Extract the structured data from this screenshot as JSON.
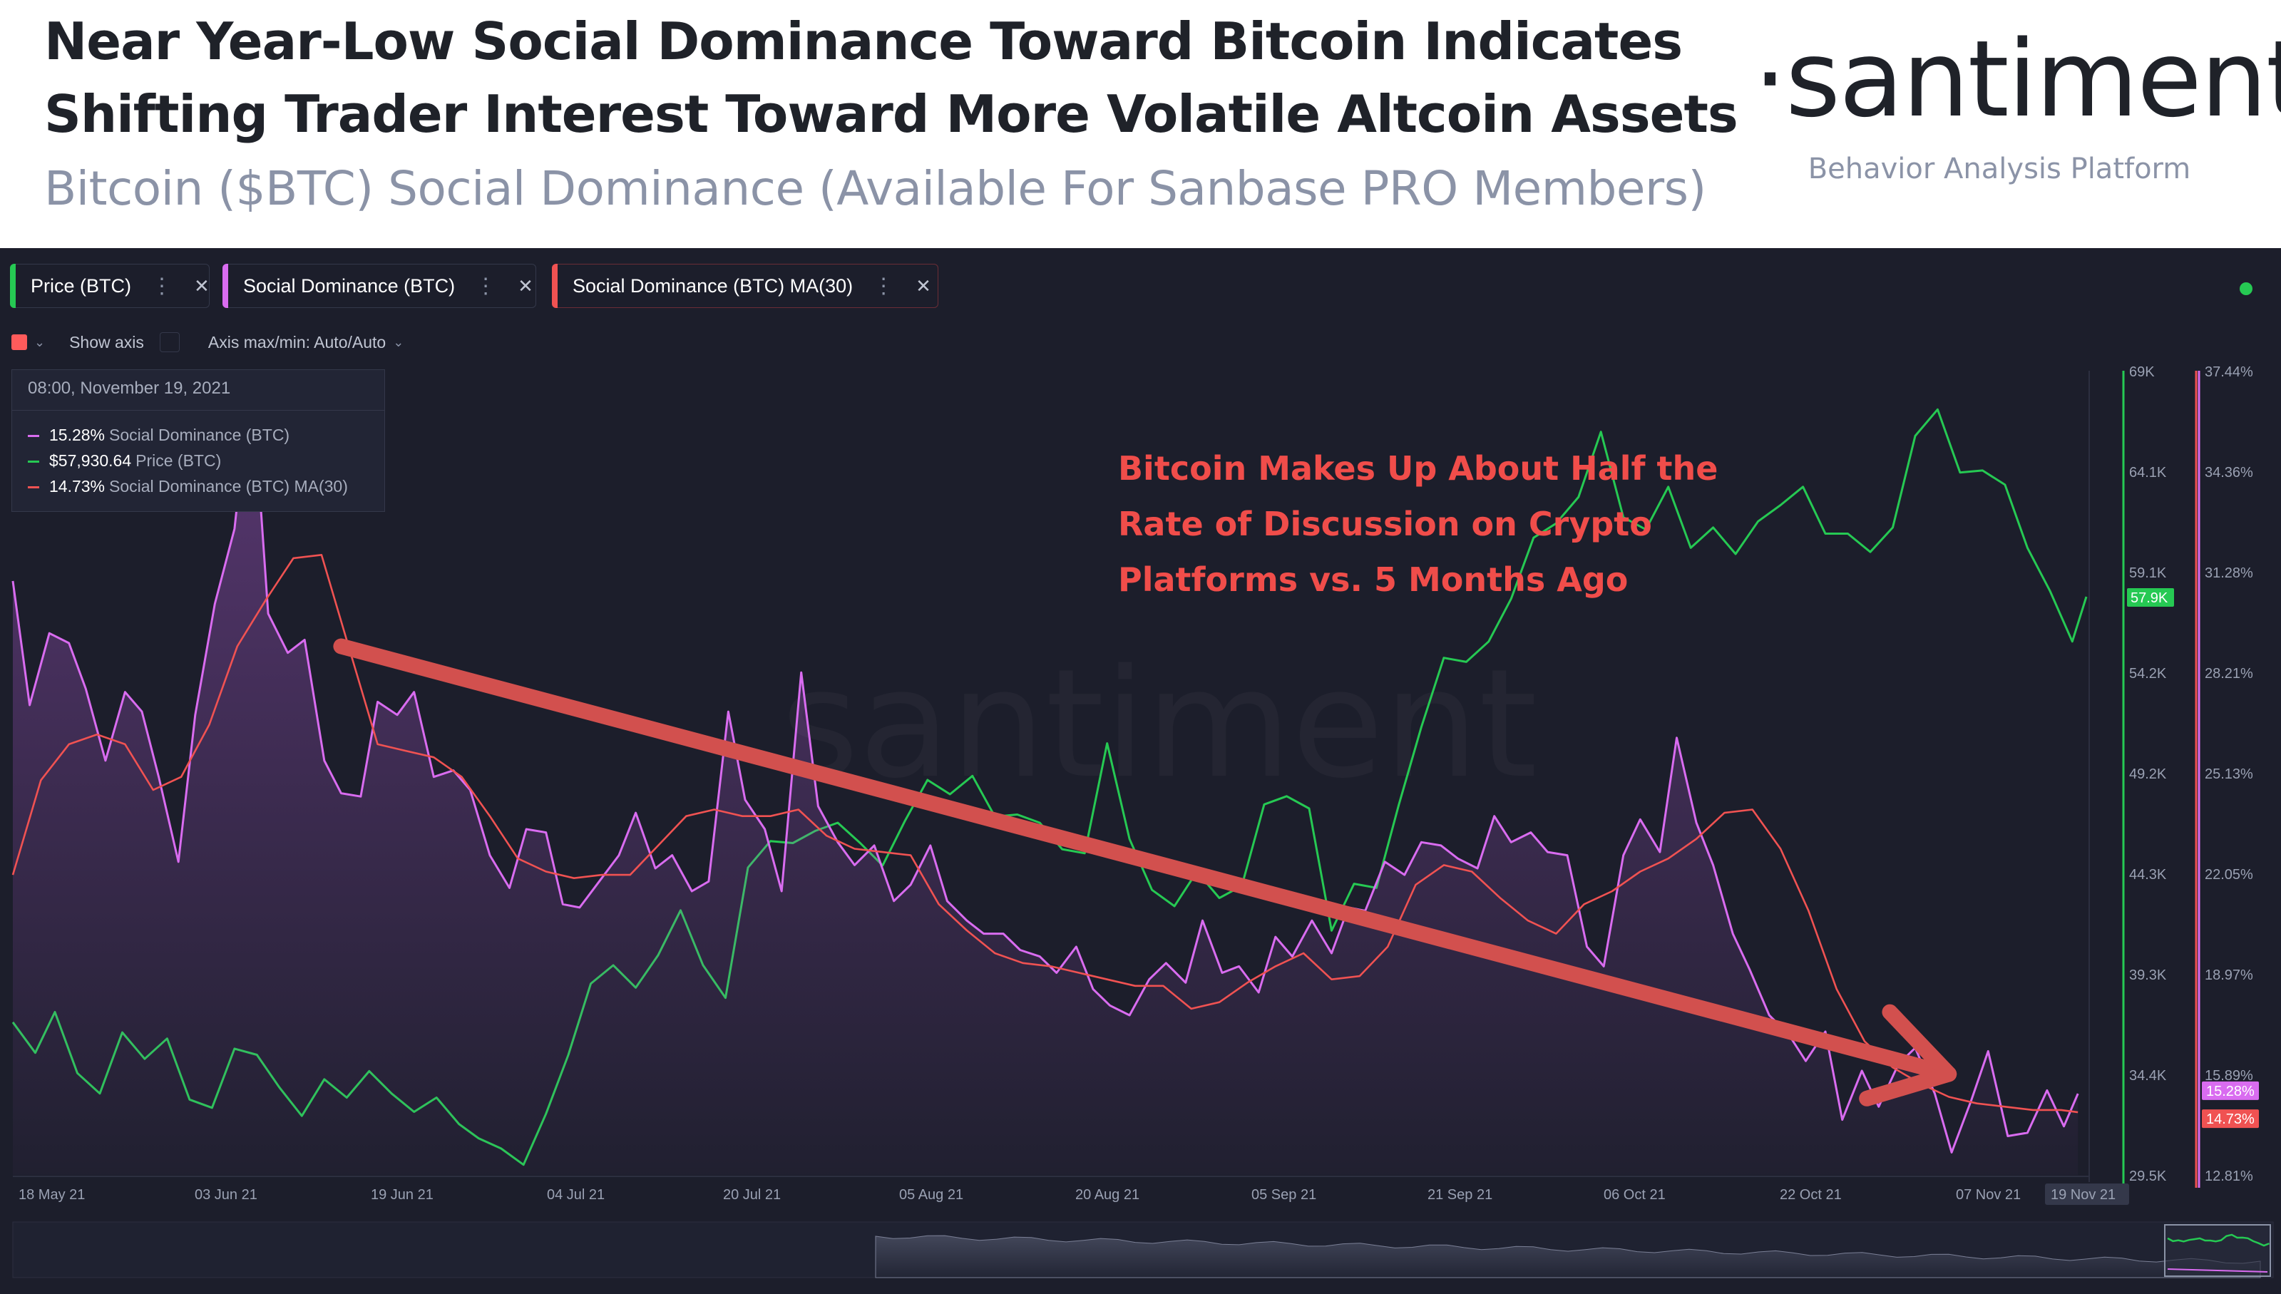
{
  "header": {
    "title_line1": "Near Year-Low Social Dominance Toward Bitcoin Indicates",
    "title_line2": "Shifting Trader Interest Toward More Volatile Altcoin Assets",
    "subtitle": "Bitcoin ($BTC) Social Dominance (Available For Sanbase PRO Members)",
    "brand": "·santiment·",
    "tagline": "Behavior Analysis Platform"
  },
  "toolbar": {
    "metrics": [
      {
        "label": "Price (BTC)",
        "color": "#26c953"
      },
      {
        "label": "Social Dominance (BTC)",
        "color": "#d96cf0"
      },
      {
        "label": "Social Dominance (BTC) MA(30)",
        "color": "#f05252"
      }
    ],
    "more_icon": "more-vertical-icon",
    "close_icon": "close-icon",
    "show_axis_label": "Show axis",
    "axis_label": "Axis max/min: Auto/Auto"
  },
  "tooltip": {
    "date": "08:00, November 19, 2021",
    "rows": [
      {
        "value": "15.28%",
        "name": "Social Dominance (BTC)",
        "color": "#d96cf0"
      },
      {
        "value": "$57,930.64",
        "name": "Price (BTC)",
        "color": "#26c953"
      },
      {
        "value": "14.73%",
        "name": "Social Dominance (BTC) MA(30)",
        "color": "#f05252"
      }
    ]
  },
  "annotation": {
    "lines": [
      "Bitcoin Makes Up About Half the",
      "Rate of Discussion on Crypto",
      "Platforms vs. 5 Months Ago"
    ],
    "color": "#f04d4a"
  },
  "watermark": "santiment",
  "chart_data": {
    "type": "line",
    "x_tick_labels": [
      "18 May 21",
      "03 Jun 21",
      "19 Jun 21",
      "04 Jul 21",
      "20 Jul 21",
      "05 Aug 21",
      "20 Aug 21",
      "05 Sep 21",
      "21 Sep 21",
      "06 Oct 21",
      "22 Oct 21",
      "07 Nov 21",
      "19 Nov 21"
    ],
    "price_axis": {
      "ticks": [
        "69K",
        "64.1K",
        "59.1K",
        "54.2K",
        "49.2K",
        "44.3K",
        "39.3K",
        "34.4K",
        "29.5K"
      ],
      "range": [
        29500,
        69000
      ],
      "current_label": "57.9K"
    },
    "dominance_axis": {
      "ticks": [
        "37.44%",
        "34.36%",
        "31.28%",
        "28.21%",
        "25.13%",
        "22.05%",
        "18.97%",
        "15.89%",
        "12.81%"
      ],
      "range": [
        12.81,
        37.44
      ],
      "current_labels": [
        "15.28%",
        "14.73%"
      ]
    },
    "series": [
      {
        "name": "Price (BTC)",
        "axis": "price",
        "color": "#26c953",
        "points": [
          [
            0,
            37000
          ],
          [
            8,
            35500
          ],
          [
            15,
            37500
          ],
          [
            23,
            34500
          ],
          [
            31,
            33500
          ],
          [
            39,
            36500
          ],
          [
            47,
            35200
          ],
          [
            55,
            36200
          ],
          [
            63,
            33200
          ],
          [
            71,
            32800
          ],
          [
            79,
            35700
          ],
          [
            87,
            35400
          ],
          [
            95,
            33800
          ],
          [
            103,
            32400
          ],
          [
            111,
            34200
          ],
          [
            119,
            33300
          ],
          [
            127,
            34600
          ],
          [
            135,
            33500
          ],
          [
            143,
            32600
          ],
          [
            151,
            33300
          ],
          [
            159,
            32000
          ],
          [
            166,
            31300
          ],
          [
            174,
            30800
          ],
          [
            182,
            30000
          ],
          [
            190,
            32500
          ],
          [
            198,
            35400
          ],
          [
            206,
            38900
          ],
          [
            214,
            39800
          ],
          [
            222,
            38700
          ],
          [
            230,
            40300
          ],
          [
            238,
            42500
          ],
          [
            246,
            39800
          ],
          [
            254,
            38200
          ],
          [
            262,
            44600
          ],
          [
            270,
            45900
          ],
          [
            278,
            45800
          ],
          [
            286,
            46400
          ],
          [
            294,
            46800
          ],
          [
            302,
            45800
          ],
          [
            310,
            44700
          ],
          [
            318,
            46900
          ],
          [
            326,
            48900
          ],
          [
            334,
            48200
          ],
          [
            342,
            49100
          ],
          [
            350,
            47100
          ],
          [
            358,
            47200
          ],
          [
            366,
            46800
          ],
          [
            374,
            45500
          ],
          [
            382,
            45300
          ],
          [
            390,
            50700
          ],
          [
            398,
            46000
          ],
          [
            406,
            43500
          ],
          [
            414,
            42700
          ],
          [
            422,
            44400
          ],
          [
            430,
            43100
          ],
          [
            438,
            43700
          ],
          [
            446,
            47700
          ],
          [
            454,
            48100
          ],
          [
            462,
            47500
          ],
          [
            470,
            41500
          ],
          [
            478,
            43800
          ],
          [
            486,
            43600
          ],
          [
            494,
            47700
          ],
          [
            502,
            51500
          ],
          [
            510,
            54900
          ],
          [
            518,
            54700
          ],
          [
            526,
            55700
          ],
          [
            534,
            57800
          ],
          [
            542,
            60800
          ],
          [
            550,
            61500
          ],
          [
            558,
            62800
          ],
          [
            566,
            66000
          ],
          [
            574,
            61800
          ],
          [
            582,
            61200
          ],
          [
            590,
            63300
          ],
          [
            598,
            60300
          ],
          [
            606,
            61300
          ],
          [
            614,
            60000
          ],
          [
            622,
            61600
          ],
          [
            630,
            62400
          ],
          [
            638,
            63300
          ],
          [
            646,
            61000
          ],
          [
            654,
            61000
          ],
          [
            662,
            60100
          ],
          [
            670,
            61300
          ],
          [
            678,
            65800
          ],
          [
            686,
            67100
          ],
          [
            694,
            64000
          ],
          [
            702,
            64100
          ],
          [
            710,
            63400
          ],
          [
            718,
            60300
          ],
          [
            726,
            58200
          ],
          [
            734,
            55700
          ],
          [
            739,
            57900
          ]
        ]
      },
      {
        "name": "Social Dominance (BTC)",
        "axis": "dominance",
        "color": "#d96cf0",
        "points": [
          [
            0,
            31.0
          ],
          [
            6,
            27.2
          ],
          [
            13,
            29.4
          ],
          [
            20,
            29.1
          ],
          [
            26,
            27.7
          ],
          [
            33,
            25.5
          ],
          [
            40,
            27.6
          ],
          [
            46,
            27.0
          ],
          [
            52,
            25.0
          ],
          [
            59,
            22.4
          ],
          [
            65,
            26.9
          ],
          [
            72,
            30.3
          ],
          [
            79,
            32.6
          ],
          [
            85,
            37.4
          ],
          [
            91,
            30.0
          ],
          [
            98,
            28.8
          ],
          [
            104,
            29.2
          ],
          [
            111,
            25.5
          ],
          [
            117,
            24.5
          ],
          [
            124,
            24.4
          ],
          [
            130,
            27.3
          ],
          [
            137,
            26.9
          ],
          [
            143,
            27.6
          ],
          [
            150,
            25.0
          ],
          [
            157,
            25.2
          ],
          [
            163,
            24.6
          ],
          [
            170,
            22.6
          ],
          [
            177,
            21.6
          ],
          [
            183,
            23.4
          ],
          [
            190,
            23.3
          ],
          [
            196,
            21.1
          ],
          [
            202,
            21.0
          ],
          [
            209,
            21.8
          ],
          [
            216,
            22.6
          ],
          [
            222,
            23.9
          ],
          [
            229,
            22.2
          ],
          [
            235,
            22.6
          ],
          [
            242,
            21.5
          ],
          [
            248,
            21.8
          ],
          [
            255,
            27.0
          ],
          [
            261,
            24.3
          ],
          [
            268,
            23.4
          ],
          [
            274,
            21.5
          ],
          [
            281,
            28.2
          ],
          [
            287,
            24.1
          ],
          [
            294,
            23.0
          ],
          [
            300,
            22.3
          ],
          [
            307,
            22.9
          ],
          [
            314,
            21.2
          ],
          [
            320,
            21.7
          ],
          [
            327,
            22.9
          ],
          [
            333,
            21.2
          ],
          [
            340,
            20.6
          ],
          [
            346,
            20.2
          ],
          [
            353,
            20.2
          ],
          [
            359,
            19.7
          ],
          [
            366,
            19.5
          ],
          [
            372,
            19.0
          ],
          [
            379,
            19.8
          ],
          [
            385,
            18.5
          ],
          [
            391,
            18.0
          ],
          [
            398,
            17.7
          ],
          [
            405,
            18.8
          ],
          [
            411,
            19.3
          ],
          [
            418,
            18.7
          ],
          [
            424,
            20.6
          ],
          [
            431,
            19.0
          ],
          [
            437,
            19.2
          ],
          [
            444,
            18.4
          ],
          [
            450,
            20.1
          ],
          [
            456,
            19.5
          ],
          [
            463,
            20.6
          ],
          [
            470,
            19.6
          ],
          [
            476,
            21.0
          ],
          [
            482,
            20.9
          ],
          [
            489,
            22.4
          ],
          [
            496,
            22.0
          ],
          [
            502,
            23.0
          ],
          [
            509,
            22.9
          ],
          [
            515,
            22.5
          ],
          [
            522,
            22.2
          ],
          [
            528,
            23.8
          ],
          [
            534,
            23.0
          ],
          [
            541,
            23.3
          ],
          [
            547,
            22.7
          ],
          [
            554,
            22.6
          ],
          [
            561,
            19.8
          ],
          [
            567,
            19.2
          ],
          [
            574,
            22.6
          ],
          [
            580,
            23.7
          ],
          [
            587,
            22.7
          ],
          [
            593,
            26.2
          ],
          [
            600,
            23.6
          ],
          [
            606,
            22.3
          ],
          [
            613,
            20.2
          ],
          [
            619,
            19.1
          ],
          [
            626,
            17.7
          ],
          [
            633,
            17.1
          ],
          [
            639,
            16.3
          ],
          [
            646,
            17.2
          ],
          [
            652,
            14.5
          ],
          [
            659,
            16.0
          ],
          [
            665,
            14.9
          ],
          [
            672,
            16.2
          ],
          [
            678,
            16.7
          ],
          [
            685,
            15.3
          ],
          [
            691,
            13.5
          ],
          [
            698,
            15.1
          ],
          [
            704,
            16.6
          ],
          [
            711,
            14.0
          ],
          [
            718,
            14.1
          ],
          [
            725,
            15.4
          ],
          [
            731,
            14.3
          ],
          [
            736,
            15.3
          ]
        ]
      },
      {
        "name": "Social Dominance (BTC) MA(30)",
        "axis": "dominance",
        "color": "#f05252",
        "points": [
          [
            0,
            22.0
          ],
          [
            10,
            24.9
          ],
          [
            20,
            26.0
          ],
          [
            30,
            26.3
          ],
          [
            40,
            26.0
          ],
          [
            50,
            24.6
          ],
          [
            60,
            25.0
          ],
          [
            70,
            26.6
          ],
          [
            80,
            29.0
          ],
          [
            90,
            30.4
          ],
          [
            100,
            31.7
          ],
          [
            110,
            31.8
          ],
          [
            120,
            28.9
          ],
          [
            130,
            26.0
          ],
          [
            140,
            25.8
          ],
          [
            150,
            25.6
          ],
          [
            160,
            25.0
          ],
          [
            170,
            23.8
          ],
          [
            180,
            22.5
          ],
          [
            190,
            22.1
          ],
          [
            200,
            21.9
          ],
          [
            210,
            22.0
          ],
          [
            220,
            22.0
          ],
          [
            230,
            22.9
          ],
          [
            240,
            23.8
          ],
          [
            250,
            24.0
          ],
          [
            260,
            23.8
          ],
          [
            270,
            23.8
          ],
          [
            280,
            24.0
          ],
          [
            290,
            23.2
          ],
          [
            300,
            22.8
          ],
          [
            310,
            22.7
          ],
          [
            320,
            22.6
          ],
          [
            330,
            21.1
          ],
          [
            340,
            20.3
          ],
          [
            350,
            19.6
          ],
          [
            360,
            19.3
          ],
          [
            370,
            19.2
          ],
          [
            380,
            19.0
          ],
          [
            390,
            18.8
          ],
          [
            400,
            18.6
          ],
          [
            410,
            18.6
          ],
          [
            420,
            17.9
          ],
          [
            430,
            18.1
          ],
          [
            440,
            18.7
          ],
          [
            450,
            19.2
          ],
          [
            460,
            19.6
          ],
          [
            470,
            18.8
          ],
          [
            480,
            18.9
          ],
          [
            490,
            19.8
          ],
          [
            500,
            21.7
          ],
          [
            510,
            22.3
          ],
          [
            520,
            22.1
          ],
          [
            530,
            21.3
          ],
          [
            540,
            20.6
          ],
          [
            550,
            20.2
          ],
          [
            560,
            21.1
          ],
          [
            570,
            21.5
          ],
          [
            580,
            22.1
          ],
          [
            590,
            22.5
          ],
          [
            600,
            23.1
          ],
          [
            610,
            23.9
          ],
          [
            620,
            24.0
          ],
          [
            630,
            22.8
          ],
          [
            640,
            20.9
          ],
          [
            650,
            18.5
          ],
          [
            660,
            16.9
          ],
          [
            670,
            16.1
          ],
          [
            680,
            15.6
          ],
          [
            690,
            15.2
          ],
          [
            700,
            15.0
          ],
          [
            710,
            14.9
          ],
          [
            720,
            14.8
          ],
          [
            730,
            14.8
          ],
          [
            736,
            14.73
          ]
        ]
      }
    ],
    "trend_arrow": {
      "from": [
        117,
        29.0
      ],
      "to": [
        690,
        15.9
      ]
    }
  }
}
